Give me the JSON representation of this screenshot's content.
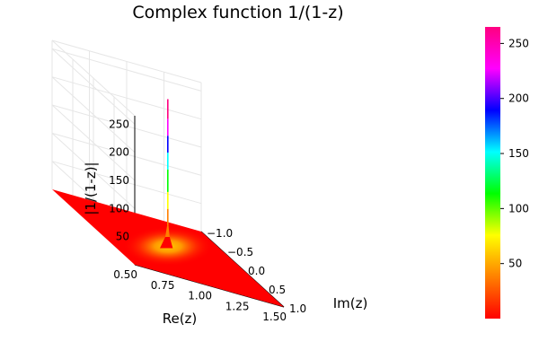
{
  "chart_data": {
    "type": "surface",
    "title": "Complex function 1/(1-z)",
    "xlabel": "Re(z)",
    "ylabel": "Im(z)",
    "zlabel": "|1/(1-z)|",
    "function": "|1/(1-z)|",
    "xlim": [
      0.5,
      1.5
    ],
    "ylim": [
      -1.0,
      1.0
    ],
    "zlim": [
      0,
      265
    ],
    "x_ticks": [
      "0.50",
      "0.75",
      "1.00",
      "1.25",
      "1.50"
    ],
    "y_ticks": [
      "−1.0",
      "−0.5",
      "0.0",
      "0.5",
      "1.0"
    ],
    "z_ticks": [
      "50",
      "100",
      "150",
      "200",
      "250"
    ],
    "colorbar": {
      "range": [
        0,
        265
      ],
      "ticks": [
        "50",
        "100",
        "150",
        "200",
        "250"
      ],
      "colormap": [
        "#ff0000",
        "#ff8000",
        "#ffff00",
        "#00ff00",
        "#00ffff",
        "#0000ff",
        "#ff00ff",
        "#ff0080"
      ]
    },
    "peak": {
      "x": 1.0,
      "y": 0.0,
      "z": 265
    },
    "grid": true,
    "legend": "none"
  }
}
